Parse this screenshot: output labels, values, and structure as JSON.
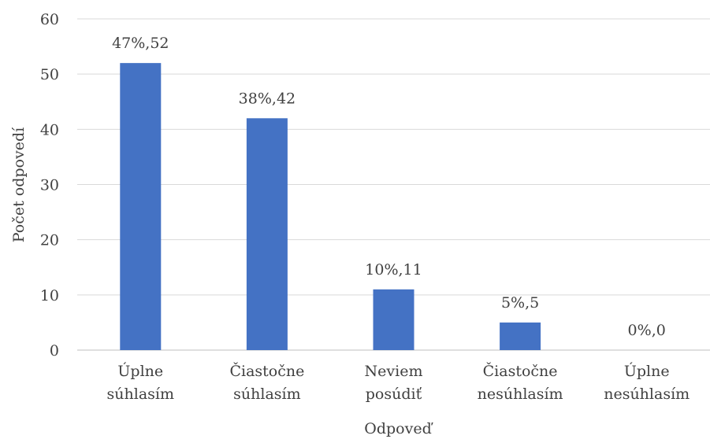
{
  "chart_data": {
    "type": "bar",
    "categories": [
      [
        "Úplne",
        "súhlasím"
      ],
      [
        "Čiastočne",
        "súhlasím"
      ],
      [
        "Neviem",
        "posúdiť"
      ],
      [
        "Čiastočne",
        "nesúhlasím"
      ],
      [
        "Úplne",
        "nesúhlasím"
      ]
    ],
    "values": [
      52,
      42,
      11,
      5,
      0
    ],
    "data_labels": [
      "47%,52",
      "38%,42",
      "10%,11",
      "5%,5",
      "0%,0"
    ],
    "xlabel": "Odpoveď",
    "ylabel": "Počet odpovedí",
    "ylim": [
      0,
      60
    ],
    "yticks": [
      0,
      10,
      20,
      30,
      40,
      50,
      60
    ],
    "grid": true,
    "bar_color": "#4472c4"
  }
}
